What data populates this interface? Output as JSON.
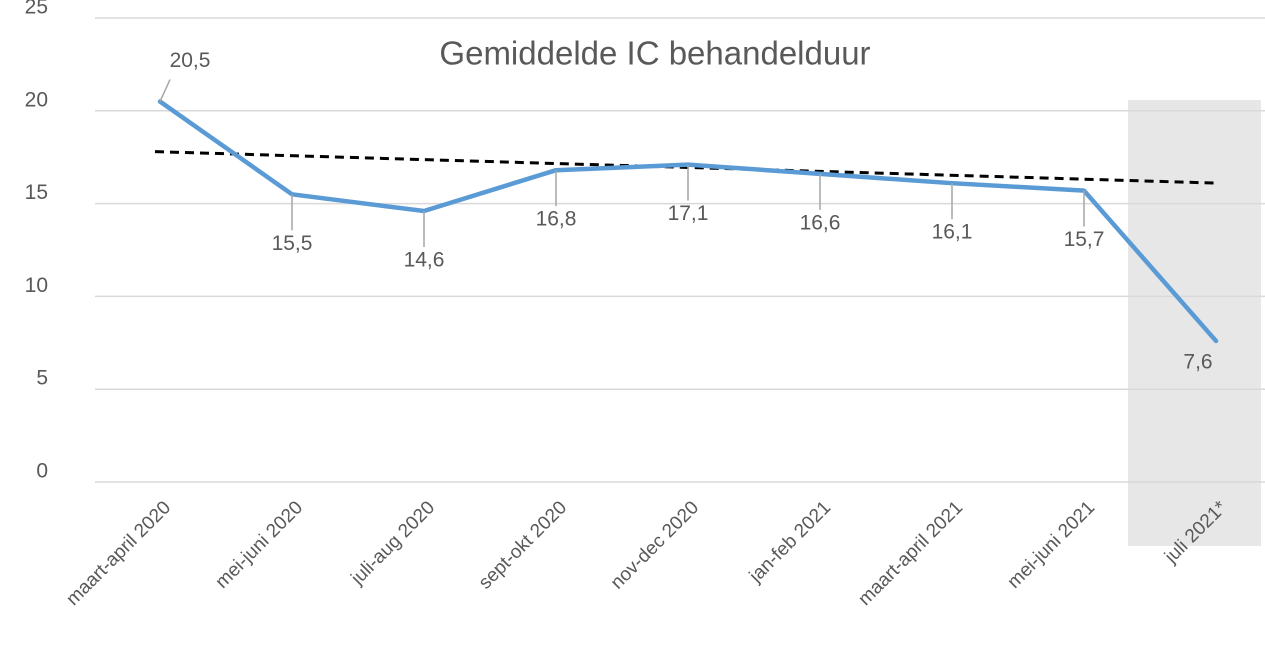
{
  "chart_data": {
    "type": "line",
    "title": "Gemiddelde IC behandelduur",
    "categories": [
      "maart-april 2020",
      "mei-juni 2020",
      "juli-aug 2020",
      "sept-okt 2020",
      "nov-dec 2020",
      "jan-feb 2021",
      "maart-april 2021",
      "mei-juni 2021",
      "juli 2021*"
    ],
    "series": [
      {
        "name": "Gemiddelde IC behandelduur",
        "color": "#5b9bd5",
        "values": [
          20.5,
          15.5,
          14.6,
          16.8,
          17.1,
          16.6,
          16.1,
          15.7,
          7.6
        ],
        "value_labels": [
          "20,5",
          "15,5",
          "14,6",
          "16,8",
          "17,1",
          "16,6",
          "16,1",
          "15,7",
          "7,6"
        ]
      }
    ],
    "trendline": [
      17.8,
      16.1
    ],
    "trendline_color": "#000000",
    "highlight_category": 8,
    "ylim": [
      0,
      25
    ],
    "yticks": [
      0,
      5,
      10,
      15,
      20,
      25
    ],
    "grid": true
  }
}
